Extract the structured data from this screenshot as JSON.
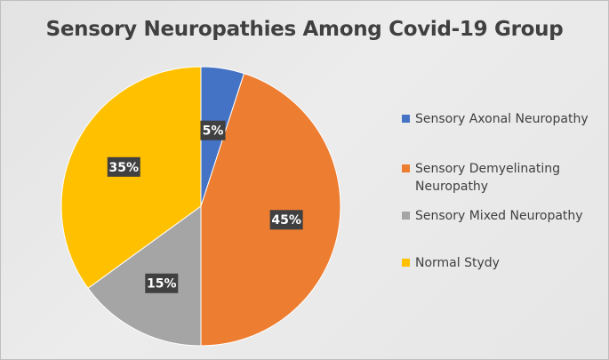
{
  "chart_data": {
    "type": "pie",
    "title": "Sensory Neuropathies Among Covid-19 Group",
    "slices": [
      {
        "name": "Sensory Axonal Neuropathy",
        "value": 5,
        "label": "5%",
        "color": "#4472C4"
      },
      {
        "name": "Sensory Demyelinating Neuropathy",
        "value": 45,
        "label": "45%",
        "color": "#ED7D31"
      },
      {
        "name": "Sensory Mixed Neuropathy",
        "value": 15,
        "label": "15%",
        "color": "#A5A5A5"
      },
      {
        "name": "Normal Stydy",
        "value": 35,
        "label": "35%",
        "color": "#FFC000"
      }
    ],
    "legend_position": "right",
    "label_style": "dark boxes with white bold percentage text"
  },
  "legend": {
    "items": [
      {
        "line1": "Sensory Axonal Neuropathy",
        "line2": ""
      },
      {
        "line1": "Sensory Demyelinating",
        "line2": "Neuropathy"
      },
      {
        "line1": "Sensory Mixed Neuropathy",
        "line2": ""
      },
      {
        "line1": "Normal Stydy",
        "line2": ""
      }
    ]
  }
}
